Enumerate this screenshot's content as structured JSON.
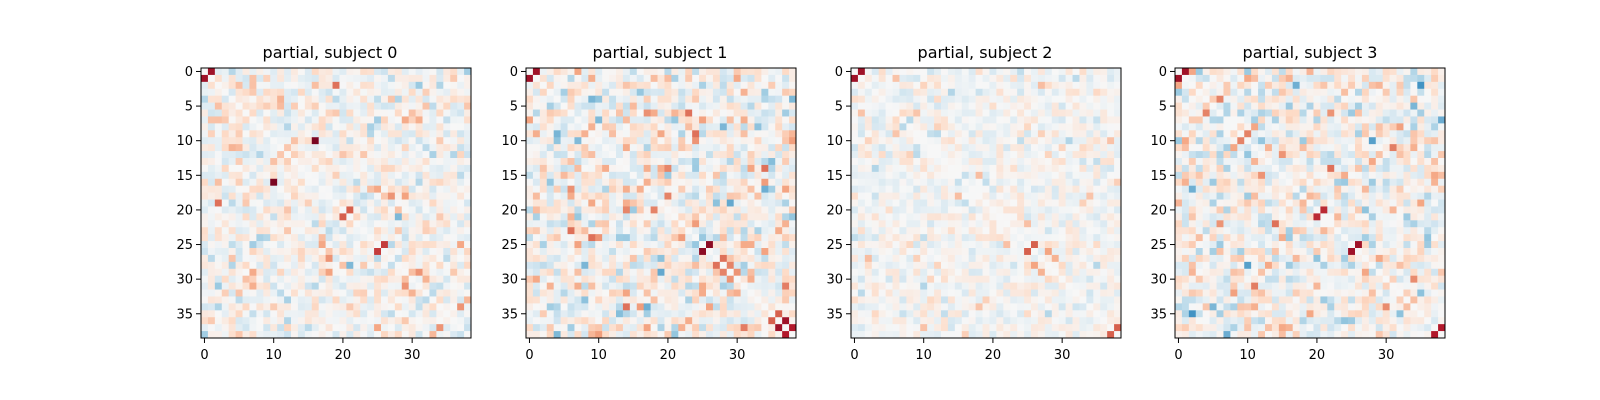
{
  "figure": {
    "background": "#ffffff",
    "colormap": "RdBu_r",
    "colormap_stops": [
      "#053061",
      "#2166ac",
      "#4393c3",
      "#92c5de",
      "#d1e5f0",
      "#f7f7f7",
      "#fddbc7",
      "#f4a582",
      "#d6604d",
      "#b2182b",
      "#67001f"
    ],
    "color_range": [
      -1,
      1
    ]
  },
  "chart_data": [
    {
      "type": "heatmap",
      "title": "partial, subject 0",
      "xlabel": "",
      "ylabel": "",
      "size": 39,
      "xlim": [
        -0.5,
        38.5
      ],
      "ylim": [
        38.5,
        -0.5
      ],
      "xticks": [
        0,
        10,
        20,
        30
      ],
      "yticks": [
        0,
        5,
        10,
        15,
        20,
        25,
        30,
        35
      ],
      "grid": false,
      "diagonal": 0,
      "seed": 11,
      "spread": 0.13,
      "strong_entries": [
        {
          "row": 0,
          "col": 1,
          "value": 0.85
        },
        {
          "row": 10,
          "col": 16,
          "value": 0.95
        },
        {
          "row": 20,
          "col": 21,
          "value": 0.6
        },
        {
          "row": 25,
          "col": 26,
          "value": 0.7
        },
        {
          "row": 2,
          "col": 5,
          "value": 0.3
        },
        {
          "row": 5,
          "col": 9,
          "value": 0.25
        },
        {
          "row": 29,
          "col": 31,
          "value": 0.45
        },
        {
          "row": 30,
          "col": 32,
          "value": 0.35
        },
        {
          "row": 19,
          "col": 2,
          "value": 0.55
        },
        {
          "row": 0,
          "col": 38,
          "value": -0.35
        },
        {
          "row": 4,
          "col": 28,
          "value": -0.3
        },
        {
          "row": 12,
          "col": 36,
          "value": -0.3
        },
        {
          "row": 34,
          "col": 37,
          "value": 0.45
        }
      ]
    },
    {
      "type": "heatmap",
      "title": "partial, subject 1",
      "xlabel": "",
      "ylabel": "",
      "size": 39,
      "xlim": [
        -0.5,
        38.5
      ],
      "ylim": [
        38.5,
        -0.5
      ],
      "xticks": [
        0,
        10,
        20,
        30
      ],
      "yticks": [
        0,
        5,
        10,
        15,
        20,
        25,
        30,
        35
      ],
      "grid": false,
      "diagonal": 0,
      "seed": 23,
      "spread": 0.18,
      "strong_entries": [
        {
          "row": 0,
          "col": 1,
          "value": 0.85
        },
        {
          "row": 25,
          "col": 26,
          "value": 0.9
        },
        {
          "row": 27,
          "col": 28,
          "value": 0.55
        },
        {
          "row": 28,
          "col": 29,
          "value": 0.5
        },
        {
          "row": 29,
          "col": 30,
          "value": 0.45
        },
        {
          "row": 35,
          "col": 36,
          "value": 0.6
        },
        {
          "row": 36,
          "col": 37,
          "value": 0.85
        },
        {
          "row": 37,
          "col": 38,
          "value": 0.8
        },
        {
          "row": 18,
          "col": 20,
          "value": 0.5
        },
        {
          "row": 9,
          "col": 24,
          "value": 0.55
        },
        {
          "row": 24,
          "col": 10,
          "value": 0.45
        },
        {
          "row": 4,
          "col": 38,
          "value": -0.45
        },
        {
          "row": 6,
          "col": 37,
          "value": -0.35
        }
      ]
    },
    {
      "type": "heatmap",
      "title": "partial, subject 2",
      "xlabel": "",
      "ylabel": "",
      "size": 39,
      "xlim": [
        -0.5,
        38.5
      ],
      "ylim": [
        38.5,
        -0.5
      ],
      "xticks": [
        0,
        10,
        20,
        30
      ],
      "yticks": [
        0,
        5,
        10,
        15,
        20,
        25,
        30,
        35
      ],
      "grid": false,
      "diagonal": 0,
      "seed": 37,
      "spread": 0.1,
      "strong_entries": [
        {
          "row": 0,
          "col": 1,
          "value": 0.85
        },
        {
          "row": 25,
          "col": 26,
          "value": 0.6
        },
        {
          "row": 26,
          "col": 28,
          "value": 0.4
        },
        {
          "row": 29,
          "col": 27,
          "value": 0.35
        },
        {
          "row": 37,
          "col": 38,
          "value": 0.6
        },
        {
          "row": 22,
          "col": 25,
          "value": 0.3
        },
        {
          "row": 3,
          "col": 14,
          "value": -0.3
        },
        {
          "row": 10,
          "col": 31,
          "value": -0.3
        }
      ]
    },
    {
      "type": "heatmap",
      "title": "partial, subject 3",
      "xlabel": "",
      "ylabel": "",
      "size": 39,
      "xlim": [
        -0.5,
        38.5
      ],
      "ylim": [
        38.5,
        -0.5
      ],
      "xticks": [
        0,
        10,
        20,
        30
      ],
      "yticks": [
        0,
        5,
        10,
        15,
        20,
        25,
        30,
        35
      ],
      "grid": false,
      "diagonal": 0,
      "seed": 53,
      "spread": 0.17,
      "strong_entries": [
        {
          "row": 0,
          "col": 1,
          "value": 0.85
        },
        {
          "row": 20,
          "col": 21,
          "value": 0.75
        },
        {
          "row": 25,
          "col": 26,
          "value": 0.85
        },
        {
          "row": 37,
          "col": 38,
          "value": 0.8
        },
        {
          "row": 4,
          "col": 6,
          "value": 0.5
        },
        {
          "row": 9,
          "col": 10,
          "value": 0.5
        },
        {
          "row": 2,
          "col": 35,
          "value": -0.6
        },
        {
          "row": 35,
          "col": 2,
          "value": -0.6
        },
        {
          "row": 7,
          "col": 38,
          "value": -0.5
        },
        {
          "row": 24,
          "col": 36,
          "value": -0.4
        },
        {
          "row": 12,
          "col": 15,
          "value": 0.45
        }
      ]
    }
  ]
}
